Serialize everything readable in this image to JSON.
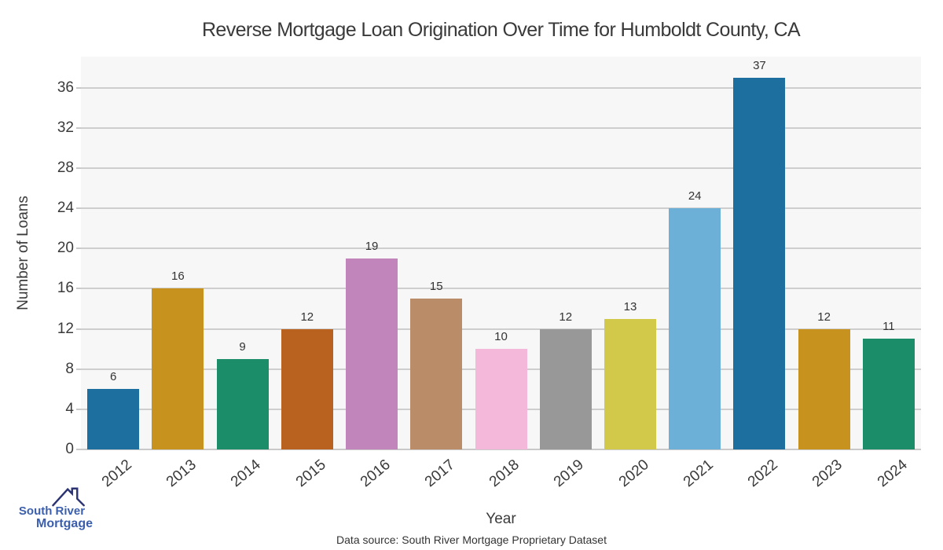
{
  "title": "Reverse Mortgage Loan Origination Over Time for Humboldt County, CA",
  "chart_data": {
    "type": "bar",
    "categories": [
      "2012",
      "2013",
      "2014",
      "2015",
      "2016",
      "2017",
      "2018",
      "2019",
      "2020",
      "2021",
      "2022",
      "2023",
      "2024"
    ],
    "values": [
      6,
      16,
      9,
      12,
      19,
      15,
      10,
      12,
      13,
      24,
      37,
      12,
      11
    ],
    "bar_colors": [
      "#1d6fa0",
      "#c8921e",
      "#1b8e69",
      "#b9621f",
      "#c285bb",
      "#ba8c68",
      "#f4b8da",
      "#989898",
      "#d2c94a",
      "#6cb0d8",
      "#1d6fa0",
      "#c8921e",
      "#1b8e69"
    ],
    "title": "Reverse Mortgage Loan Origination Over Time for Humboldt County, CA",
    "xlabel": "Year",
    "ylabel": "Number of Loans",
    "yticks": [
      0,
      4,
      8,
      12,
      16,
      20,
      24,
      28,
      32,
      36
    ],
    "ylim": [
      0,
      39.1
    ],
    "grid": "horizontal",
    "legend": "none",
    "value_labels": true,
    "plot_bg": "#f7f7f7",
    "grid_color": "#cecece",
    "axis_line_color": "#c9c9c9",
    "tick_label_color": "#3a3a3a",
    "value_label_color": "#333333"
  },
  "footer": {
    "data_source": "Data source: South River Mortgage Proprietary Dataset"
  },
  "logo": {
    "line1": "South River",
    "line2": "Mortgage",
    "text_color": "#3c5fad",
    "roof_color": "#2b3271"
  }
}
